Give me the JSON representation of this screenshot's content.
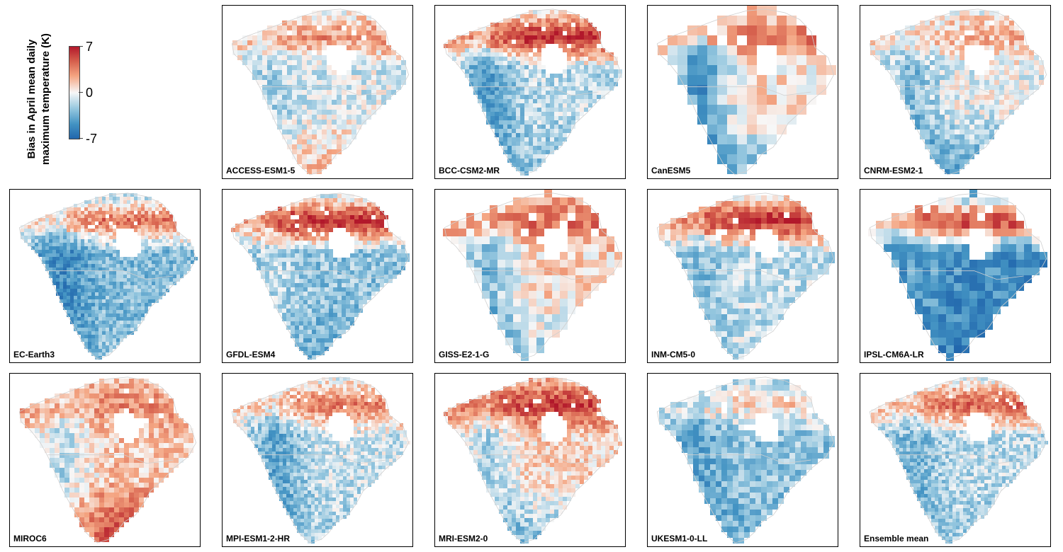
{
  "chart_data": {
    "type": "heatmap",
    "description_free": true,
    "colorbar": {
      "title": "Bias in April mean daily\nmaximum temperature (K)",
      "ticks": [
        "7",
        "0",
        "-7"
      ],
      "range": [
        -7,
        7
      ],
      "colors": {
        "max": "#b2182b",
        "mid": "#f7f7f7",
        "min": "#2166ac"
      }
    },
    "panels": [
      {
        "name": "ACCESS-ESM1-5",
        "north": 0.45,
        "west": -0.25,
        "center": -0.1,
        "south": 0.3,
        "res": 7
      },
      {
        "name": "BCC-CSM2-MR",
        "north": 0.95,
        "west": -0.6,
        "center": -0.2,
        "south": -0.35,
        "res": 6
      },
      {
        "name": "CanESM5",
        "north": 0.55,
        "west": -0.7,
        "center": 0.1,
        "south": -0.45,
        "res": 14
      },
      {
        "name": "CNRM-ESM2-1",
        "north": 0.3,
        "west": -0.4,
        "center": -0.05,
        "south": -0.6,
        "res": 7
      },
      {
        "name": "EC-Earth3",
        "north": 0.6,
        "west": -0.75,
        "center": -0.4,
        "south": -0.35,
        "res": 5
      },
      {
        "name": "GFDL-ESM4",
        "north": 0.95,
        "west": -0.2,
        "center": -0.35,
        "south": -0.5,
        "res": 6
      },
      {
        "name": "GISS-E2-1-G",
        "north": 0.6,
        "west": -0.45,
        "center": 0.15,
        "south": -0.3,
        "res": 11
      },
      {
        "name": "INM-CM5-0",
        "north": 0.95,
        "west": -0.4,
        "center": -0.2,
        "south": -0.15,
        "res": 8
      },
      {
        "name": "IPSL-CM6A-LR",
        "north": 0.85,
        "west": -0.55,
        "center": -0.7,
        "south": -0.8,
        "res": 11
      },
      {
        "name": "MIROC6",
        "north": 0.45,
        "west": -0.2,
        "center": 0.2,
        "south": 0.85,
        "res": 7
      },
      {
        "name": "MPI-ESM1-2-HR",
        "north": 0.55,
        "west": -0.55,
        "center": -0.15,
        "south": -0.3,
        "res": 5
      },
      {
        "name": "MRI-ESM2-0",
        "north": 0.85,
        "west": -0.25,
        "center": 0.15,
        "south": -0.45,
        "res": 6
      },
      {
        "name": "UKESM1-0-LL",
        "north": 0.15,
        "west": -0.55,
        "center": -0.35,
        "south": -0.45,
        "res": 8
      },
      {
        "name": "Ensemble mean",
        "north": 0.65,
        "west": -0.45,
        "center": -0.2,
        "south": -0.3,
        "res": 5
      }
    ]
  }
}
